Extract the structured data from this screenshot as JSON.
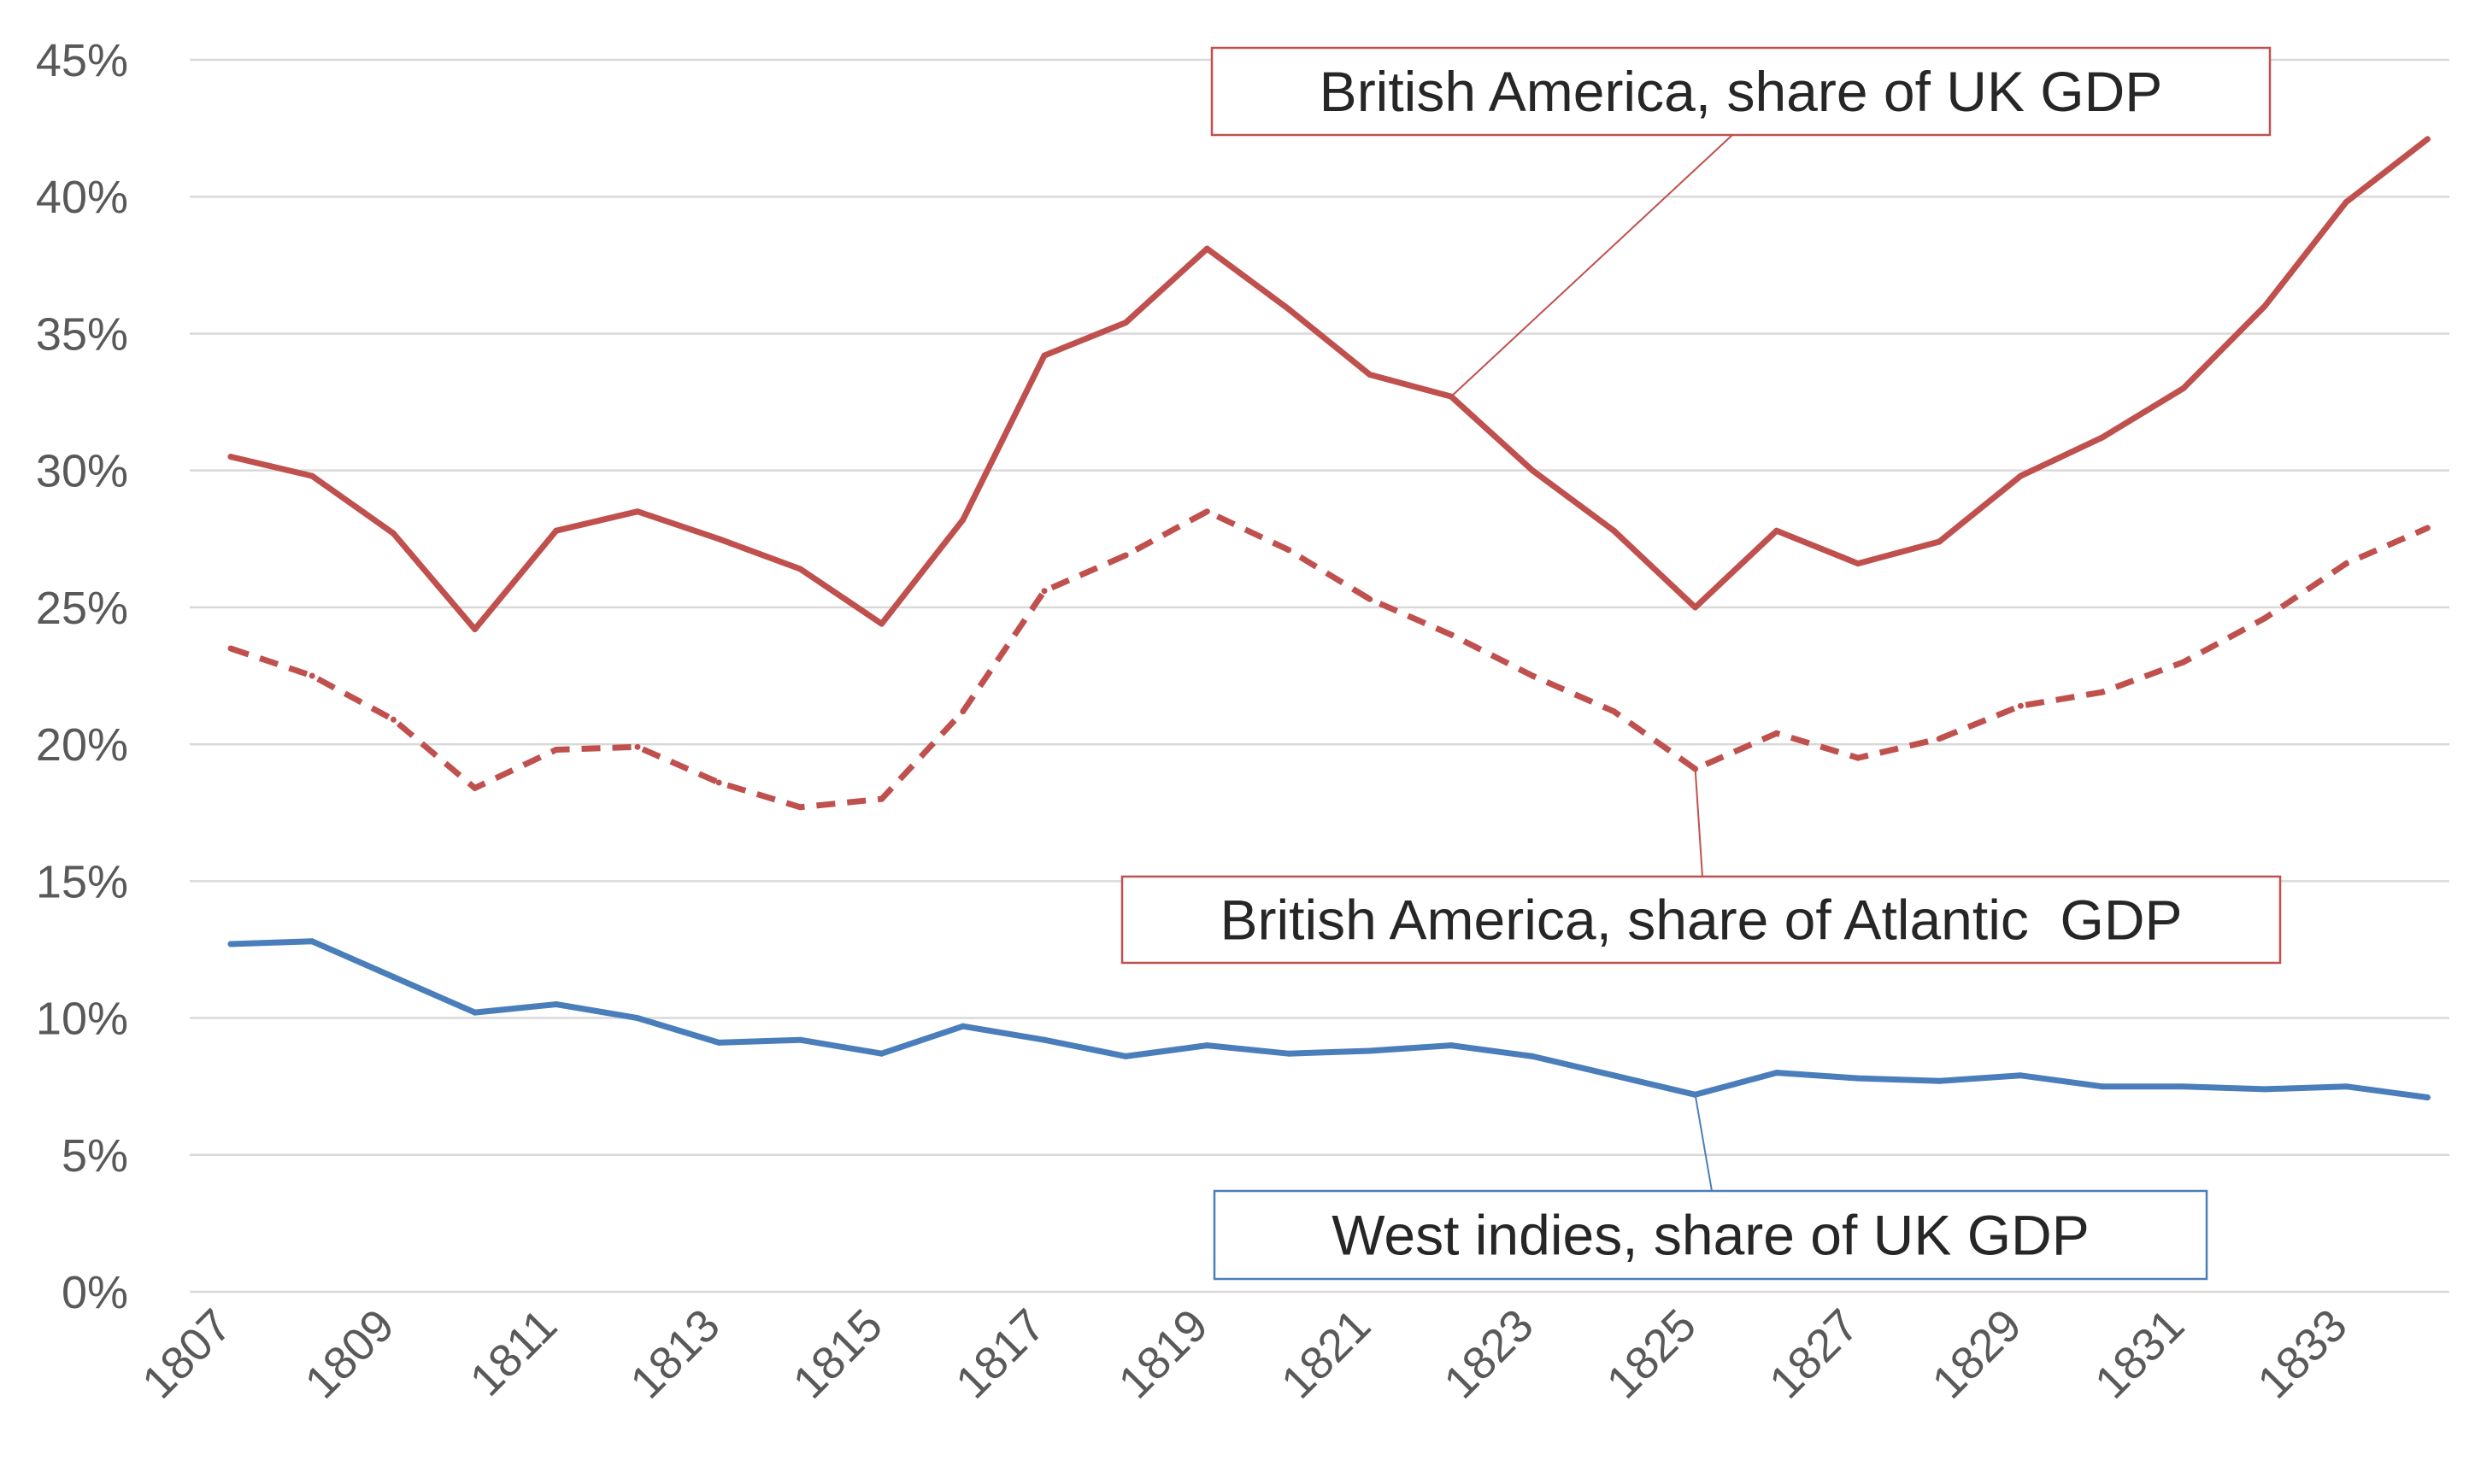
{
  "chart_data": {
    "type": "line",
    "title": "",
    "xlabel": "",
    "ylabel": "",
    "ylim": [
      0,
      45
    ],
    "y_ticks": [
      "0%",
      "5%",
      "10%",
      "15%",
      "20%",
      "25%",
      "30%",
      "35%",
      "40%",
      "45%"
    ],
    "x": [
      1807,
      1808,
      1809,
      1810,
      1811,
      1812,
      1813,
      1814,
      1815,
      1816,
      1817,
      1818,
      1819,
      1820,
      1821,
      1822,
      1823,
      1824,
      1825,
      1826,
      1827,
      1828,
      1829,
      1830,
      1831,
      1832,
      1833,
      1834
    ],
    "x_tick_labels": [
      "1807",
      "1809",
      "1811",
      "1813",
      "1815",
      "1817",
      "1819",
      "1821",
      "1823",
      "1825",
      "1827",
      "1829",
      "1831",
      "1833"
    ],
    "grid": true,
    "legend": "callouts",
    "series": [
      {
        "name": "British America, share of UK GDP",
        "color": "#c0504d",
        "style": "solid",
        "values": [
          30.5,
          29.8,
          27.7,
          24.2,
          27.8,
          28.5,
          27.5,
          26.4,
          24.4,
          28.2,
          34.2,
          35.4,
          38.1,
          35.9,
          33.5,
          32.7,
          30.0,
          27.8,
          25.0,
          27.8,
          26.6,
          27.4,
          29.8,
          31.2,
          33.0,
          36.0,
          39.8,
          42.1
        ]
      },
      {
        "name": "British America, share of Atlantic  GDP",
        "color": "#c0504d",
        "style": "dashed",
        "values": [
          23.5,
          22.5,
          20.9,
          18.4,
          19.8,
          19.9,
          18.6,
          17.7,
          18.0,
          21.2,
          25.6,
          26.9,
          28.5,
          27.1,
          25.3,
          24.0,
          22.5,
          21.2,
          19.1,
          20.4,
          19.5,
          20.2,
          21.4,
          21.9,
          23.0,
          24.6,
          26.6,
          27.9
        ]
      },
      {
        "name": "West indies, share of UK GDP",
        "color": "#4a7ebb",
        "style": "solid",
        "values": [
          12.7,
          12.8,
          11.5,
          10.2,
          10.5,
          10.0,
          9.1,
          9.2,
          8.7,
          9.7,
          9.2,
          8.6,
          9.0,
          8.7,
          8.8,
          9.0,
          8.6,
          7.9,
          7.2,
          8.0,
          7.8,
          7.7,
          7.9,
          7.5,
          7.5,
          7.4,
          7.5,
          7.1
        ]
      }
    ]
  }
}
